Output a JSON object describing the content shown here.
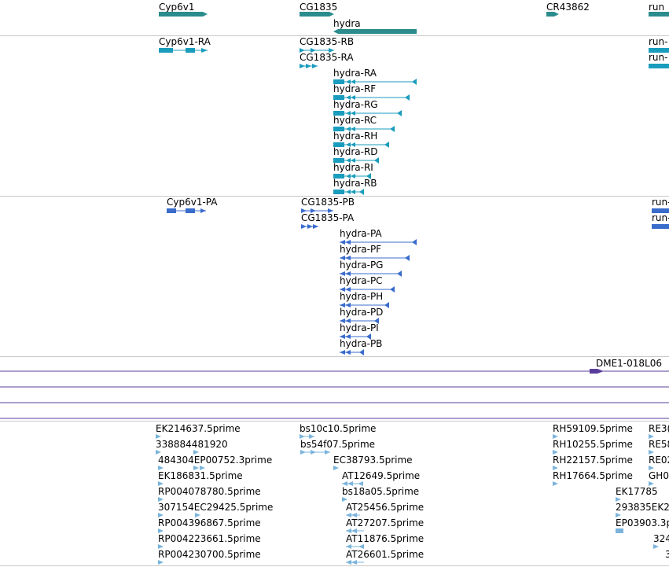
{
  "colors": {
    "gene": "#2a8c8c",
    "transcript": "#1a9cbd",
    "protein": "#3a6ccc",
    "purple": "#5a3c9c",
    "est": "#7ab4dc",
    "separator": "#c8c8c8"
  },
  "genes_track": {
    "labels": [
      "Cyp6v1",
      "CG1835",
      "CR43862",
      "run",
      "hydra"
    ]
  },
  "transcripts_track": {
    "labels": [
      "Cyp6v1-RA",
      "CG1835-RB",
      "CG1835-RA",
      "run-",
      "run-",
      "hydra-RA",
      "hydra-RF",
      "hydra-RG",
      "hydra-RC",
      "hydra-RH",
      "hydra-RD",
      "hydra-RI",
      "hydra-RB"
    ]
  },
  "proteins_track": {
    "labels": [
      "Cyp6v1-PA",
      "CG1835-PB",
      "CG1835-PA",
      "run-",
      "run-",
      "hydra-PA",
      "hydra-PF",
      "hydra-PG",
      "hydra-PC",
      "hydra-PH",
      "hydra-PD",
      "hydra-PI",
      "hydra-PB"
    ]
  },
  "purple_track": {
    "labels": [
      "DME1-018L06"
    ]
  },
  "est_track": {
    "labels": [
      "EK214637.5prime",
      "338884481920",
      "484304EP00752.3prime",
      "EK186831.5prime",
      "RP004078780.5prime",
      "307154EC29425.5prime",
      "RP004396867.5prime",
      "RP004223661.5prime",
      "RP004230700.5prime",
      "bs10c10.5prime",
      "bs54f07.5prime",
      "EC38793.5prime",
      "AT12649.5prime",
      "bs18a05.5prime",
      "AT25456.5prime",
      "AT27207.5prime",
      "AT11876.5prime",
      "AT26601.5prime",
      "RH59109.5prime",
      "RH10255.5prime",
      "RH22157.5prime",
      "RH17664.5prime",
      "EK17785",
      "RE3(",
      "RE58",
      "RE02",
      "GH0",
      "293835EK2",
      "EP03903.3p",
      "324",
      "3"
    ]
  }
}
